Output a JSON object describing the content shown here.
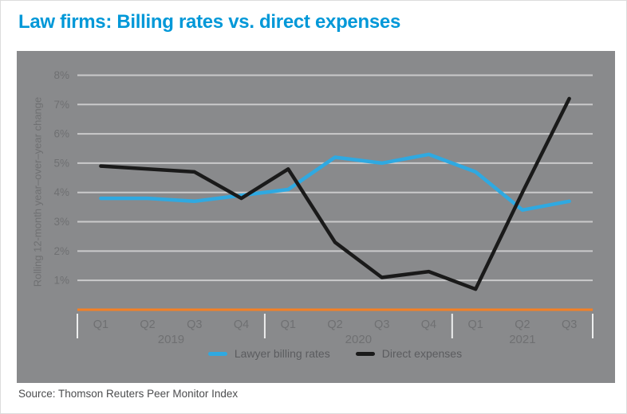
{
  "page": {
    "title": "Law firms: Billing rates vs. direct expenses",
    "source": "Source: Thomson Reuters Peer Monitor Index"
  },
  "colors": {
    "title_blue": "#0098d8",
    "chart_background_gray": "#898a8c",
    "gridline": "rgba(255,255,255,0.55)",
    "separator": "rgba(255,255,255,0.85)",
    "axis_text_gray": "#6f7072",
    "billing_rates_blue": "#2fa9e1",
    "direct_expenses_black": "#1a1a1a",
    "zero_baseline_orange": "#f58025"
  },
  "chart_data": {
    "type": "line",
    "title": "Law firms: Billing rates vs. direct expenses",
    "ylabel": "Rolling 12-month year–over–year change",
    "xlabel": "",
    "grid": true,
    "legend_position": "bottom",
    "ylim": [
      0,
      8.5
    ],
    "y_ticks": [
      {
        "value": 1,
        "label": "1%"
      },
      {
        "value": 2,
        "label": "2%"
      },
      {
        "value": 3,
        "label": "3%"
      },
      {
        "value": 4,
        "label": "4%"
      },
      {
        "value": 5,
        "label": "5%"
      },
      {
        "value": 6,
        "label": "6%"
      },
      {
        "value": 7,
        "label": "7%"
      },
      {
        "value": 8,
        "label": "8%"
      }
    ],
    "categories": [
      "Q1",
      "Q2",
      "Q3",
      "Q4",
      "Q1",
      "Q2",
      "Q3",
      "Q4",
      "Q1",
      "Q2",
      "Q3"
    ],
    "year_groups": [
      {
        "label": "2019",
        "quarters": 4
      },
      {
        "label": "2020",
        "quarters": 4
      },
      {
        "label": "2021",
        "quarters": 3
      }
    ],
    "series": [
      {
        "name": "Lawyer billing rates",
        "color": "#2fa9e1",
        "values": [
          3.8,
          3.8,
          3.7,
          3.9,
          4.1,
          5.2,
          5.0,
          5.3,
          4.7,
          3.4,
          3.7
        ]
      },
      {
        "name": "Direct expenses",
        "color": "#1a1a1a",
        "values": [
          4.9,
          4.8,
          4.7,
          3.8,
          4.8,
          2.3,
          1.1,
          1.3,
          0.7,
          4.0,
          7.2
        ]
      }
    ],
    "baseline": {
      "value": 0,
      "color": "#f58025"
    }
  }
}
